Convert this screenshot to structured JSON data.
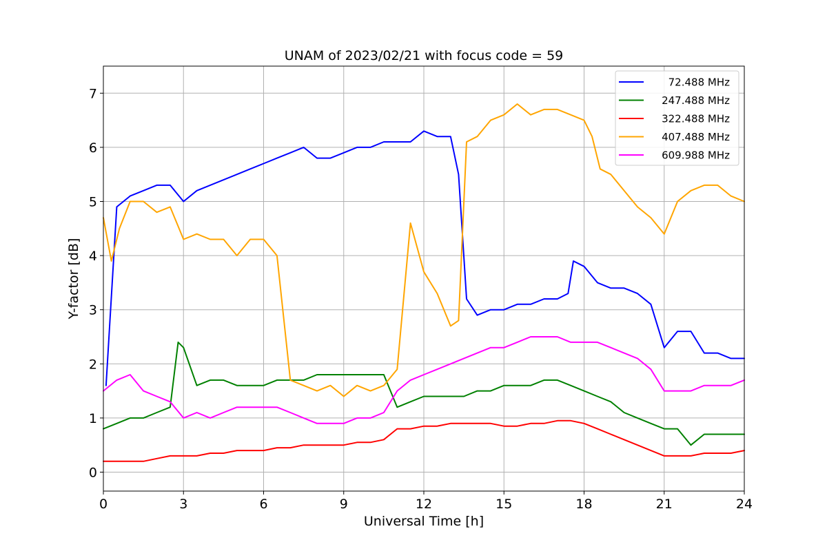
{
  "chart_data": {
    "type": "line",
    "title": "UNAM of 2023/02/21 with focus code = 59",
    "xlabel": "Universal Time [h]",
    "ylabel": "Y-factor [dB]",
    "xlim": [
      0,
      24
    ],
    "ylim": [
      -0.35,
      7.5
    ],
    "xticks": [
      0,
      3,
      6,
      9,
      12,
      15,
      18,
      21,
      24
    ],
    "yticks": [
      0,
      1,
      2,
      3,
      4,
      5,
      6,
      7
    ],
    "grid": true,
    "legend_position": "top-right",
    "series": [
      {
        "name": "72.488 MHz",
        "color": "#0000ff",
        "x": [
          0.1,
          0.5,
          1.0,
          1.5,
          2.0,
          2.5,
          3.0,
          3.5,
          4.0,
          4.5,
          5.0,
          5.5,
          6.0,
          6.5,
          7.0,
          7.5,
          8.0,
          8.5,
          9.0,
          9.5,
          10.0,
          10.5,
          11.0,
          11.5,
          12.0,
          12.5,
          13.0,
          13.3,
          13.6,
          14.0,
          14.5,
          15.0,
          15.5,
          16.0,
          16.5,
          17.0,
          17.4,
          17.6,
          18.0,
          18.5,
          19.0,
          19.5,
          20.0,
          20.5,
          21.0,
          21.5,
          22.0,
          22.5,
          23.0,
          23.5,
          24.0
        ],
        "y": [
          1.6,
          4.9,
          5.1,
          5.2,
          5.3,
          5.3,
          5.0,
          5.2,
          5.3,
          5.4,
          5.5,
          5.6,
          5.7,
          5.8,
          5.9,
          6.0,
          5.8,
          5.8,
          5.9,
          6.0,
          6.0,
          6.1,
          6.1,
          6.1,
          6.3,
          6.2,
          6.2,
          5.5,
          3.2,
          2.9,
          3.0,
          3.0,
          3.1,
          3.1,
          3.2,
          3.2,
          3.3,
          3.9,
          3.8,
          3.5,
          3.4,
          3.4,
          3.3,
          3.1,
          2.3,
          2.6,
          2.6,
          2.2,
          2.2,
          2.1,
          2.1
        ]
      },
      {
        "name": "247.488 MHz",
        "color": "#008000",
        "x": [
          0.0,
          0.5,
          1.0,
          1.5,
          2.0,
          2.5,
          2.8,
          3.0,
          3.5,
          4.0,
          4.5,
          5.0,
          5.5,
          6.0,
          6.5,
          7.0,
          7.5,
          8.0,
          8.5,
          9.0,
          9.5,
          10.0,
          10.5,
          11.0,
          11.5,
          12.0,
          12.5,
          13.0,
          13.5,
          14.0,
          14.5,
          15.0,
          15.5,
          16.0,
          16.5,
          17.0,
          17.5,
          18.0,
          18.5,
          19.0,
          19.5,
          20.0,
          20.5,
          21.0,
          21.5,
          22.0,
          22.5,
          23.0,
          23.5,
          24.0
        ],
        "y": [
          0.8,
          0.9,
          1.0,
          1.0,
          1.1,
          1.2,
          2.4,
          2.3,
          1.6,
          1.7,
          1.7,
          1.6,
          1.6,
          1.6,
          1.7,
          1.7,
          1.7,
          1.8,
          1.8,
          1.8,
          1.8,
          1.8,
          1.8,
          1.2,
          1.3,
          1.4,
          1.4,
          1.4,
          1.4,
          1.5,
          1.5,
          1.6,
          1.6,
          1.6,
          1.7,
          1.7,
          1.6,
          1.5,
          1.4,
          1.3,
          1.1,
          1.0,
          0.9,
          0.8,
          0.8,
          0.5,
          0.7,
          0.7,
          0.7,
          0.7
        ]
      },
      {
        "name": "322.488 MHz",
        "color": "#ff0000",
        "x": [
          0.0,
          0.5,
          1.0,
          1.5,
          2.0,
          2.5,
          3.0,
          3.5,
          4.0,
          4.5,
          5.0,
          5.5,
          6.0,
          6.5,
          7.0,
          7.5,
          8.0,
          8.5,
          9.0,
          9.5,
          10.0,
          10.5,
          11.0,
          11.5,
          12.0,
          12.5,
          13.0,
          13.5,
          14.0,
          14.5,
          15.0,
          15.5,
          16.0,
          16.5,
          17.0,
          17.5,
          18.0,
          18.5,
          19.0,
          19.5,
          20.0,
          20.5,
          21.0,
          21.5,
          22.0,
          22.5,
          23.0,
          23.5,
          24.0
        ],
        "y": [
          0.2,
          0.2,
          0.2,
          0.2,
          0.25,
          0.3,
          0.3,
          0.3,
          0.35,
          0.35,
          0.4,
          0.4,
          0.4,
          0.45,
          0.45,
          0.5,
          0.5,
          0.5,
          0.5,
          0.55,
          0.55,
          0.6,
          0.8,
          0.8,
          0.85,
          0.85,
          0.9,
          0.9,
          0.9,
          0.9,
          0.85,
          0.85,
          0.9,
          0.9,
          0.95,
          0.95,
          0.9,
          0.8,
          0.7,
          0.6,
          0.5,
          0.4,
          0.3,
          0.3,
          0.3,
          0.35,
          0.35,
          0.35,
          0.4
        ]
      },
      {
        "name": "407.488 MHz",
        "color": "#ffa500",
        "x": [
          0.0,
          0.3,
          0.6,
          1.0,
          1.5,
          2.0,
          2.5,
          3.0,
          3.5,
          4.0,
          4.5,
          5.0,
          5.5,
          6.0,
          6.5,
          7.0,
          7.5,
          8.0,
          8.5,
          9.0,
          9.5,
          10.0,
          10.5,
          11.0,
          11.5,
          12.0,
          12.5,
          13.0,
          13.3,
          13.6,
          14.0,
          14.5,
          15.0,
          15.5,
          16.0,
          16.5,
          17.0,
          17.5,
          18.0,
          18.3,
          18.6,
          19.0,
          19.5,
          20.0,
          20.5,
          21.0,
          21.5,
          22.0,
          22.5,
          23.0,
          23.5,
          24.0
        ],
        "y": [
          4.7,
          3.9,
          4.5,
          5.0,
          5.0,
          4.8,
          4.9,
          4.3,
          4.4,
          4.3,
          4.3,
          4.0,
          4.3,
          4.3,
          4.0,
          1.7,
          1.6,
          1.5,
          1.6,
          1.4,
          1.6,
          1.5,
          1.6,
          1.9,
          4.6,
          3.7,
          3.3,
          2.7,
          2.8,
          6.1,
          6.2,
          6.5,
          6.6,
          6.8,
          6.6,
          6.7,
          6.7,
          6.6,
          6.5,
          6.2,
          5.6,
          5.5,
          5.2,
          4.9,
          4.7,
          4.4,
          5.0,
          5.2,
          5.3,
          5.3,
          5.1,
          5.0
        ]
      },
      {
        "name": "609.988 MHz",
        "color": "#ff00ff",
        "x": [
          0.0,
          0.5,
          1.0,
          1.5,
          2.0,
          2.5,
          3.0,
          3.5,
          4.0,
          4.5,
          5.0,
          5.5,
          6.0,
          6.5,
          7.0,
          7.5,
          8.0,
          8.5,
          9.0,
          9.5,
          10.0,
          10.5,
          11.0,
          11.5,
          12.0,
          12.5,
          13.0,
          13.5,
          14.0,
          14.5,
          15.0,
          15.5,
          16.0,
          16.5,
          17.0,
          17.5,
          18.0,
          18.5,
          19.0,
          19.5,
          20.0,
          20.5,
          21.0,
          21.5,
          22.0,
          22.5,
          23.0,
          23.5,
          24.0
        ],
        "y": [
          1.5,
          1.7,
          1.8,
          1.5,
          1.4,
          1.3,
          1.0,
          1.1,
          1.0,
          1.1,
          1.2,
          1.2,
          1.2,
          1.2,
          1.1,
          1.0,
          0.9,
          0.9,
          0.9,
          1.0,
          1.0,
          1.1,
          1.5,
          1.7,
          1.8,
          1.9,
          2.0,
          2.1,
          2.2,
          2.3,
          2.3,
          2.4,
          2.5,
          2.5,
          2.5,
          2.4,
          2.4,
          2.4,
          2.3,
          2.2,
          2.1,
          1.9,
          1.5,
          1.5,
          1.5,
          1.6,
          1.6,
          1.6,
          1.7
        ]
      }
    ]
  }
}
